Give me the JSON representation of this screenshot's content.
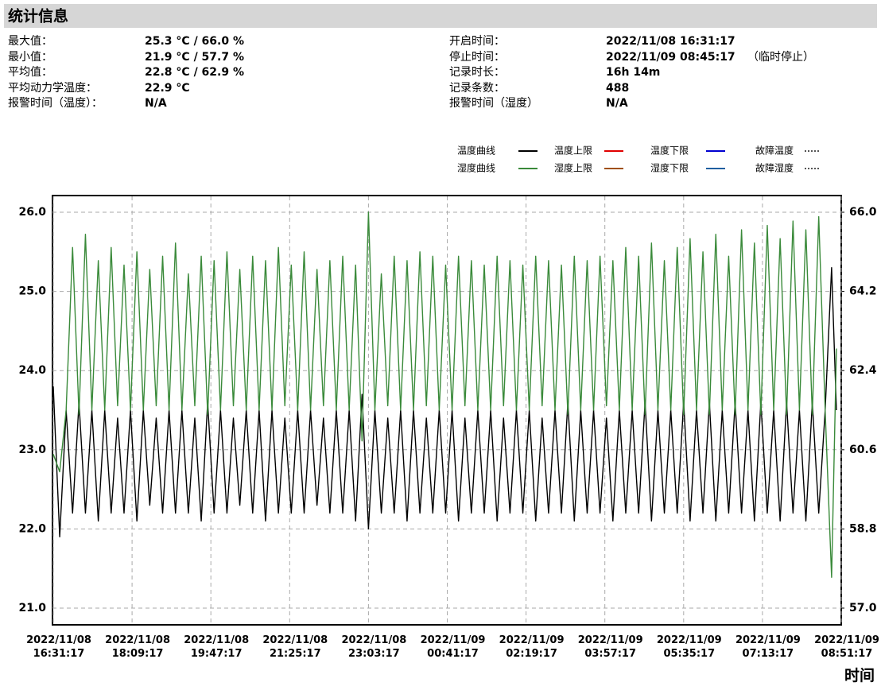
{
  "stats": {
    "title": "统计信息",
    "left": [
      {
        "label": "最大值：",
        "value": "25.3 °C / 66.0 %"
      },
      {
        "label": "最小值：",
        "value": "21.9 °C / 57.7 %"
      },
      {
        "label": "平均值：",
        "value": "22.8 °C / 62.9 %"
      },
      {
        "label": "平均动力学温度：",
        "value": "22.9 °C"
      },
      {
        "label": "报警时间（温度）：",
        "value": "N/A"
      }
    ],
    "right": [
      {
        "label": "开启时间：",
        "value": "2022/11/08 16:31:17"
      },
      {
        "label": "停止时间：",
        "value": "2022/11/09 08:45:17",
        "note": "（临时停止）"
      },
      {
        "label": "记录时长：",
        "value": "16h 14m"
      },
      {
        "label": "记录条数：",
        "value": "488"
      },
      {
        "label": "报警时间（湿度）",
        "value": "N/A"
      }
    ]
  },
  "chart_data": {
    "type": "line",
    "x_label": "时间",
    "grid": true,
    "xlim": [
      "2022/11/08 16:31:17",
      "2022/11/09 08:51:17"
    ],
    "xticks": [
      "2022/11/08 16:31:17",
      "2022/11/08 18:09:17",
      "2022/11/08 19:47:17",
      "2022/11/08 21:25:17",
      "2022/11/08 23:03:17",
      "2022/11/09 00:41:17",
      "2022/11/09 02:19:17",
      "2022/11/09 03:57:17",
      "2022/11/09 05:35:17",
      "2022/11/09 07:13:17",
      "2022/11/09 08:51:17"
    ],
    "ylim": [
      21,
      26
    ],
    "yticks": [
      {
        "value": 21,
        "label": "21.0"
      },
      {
        "value": 22,
        "label": "22.0"
      },
      {
        "value": 23,
        "label": "23.0"
      },
      {
        "value": 24,
        "label": "24.0"
      },
      {
        "value": 25,
        "label": "25.0"
      },
      {
        "value": 26,
        "label": "26.0"
      }
    ],
    "y2lim": [
      57,
      66
    ],
    "y2ticks": [
      {
        "value": 57,
        "label": "57.0"
      },
      58.8,
      60.6,
      62.4,
      64.2,
      {
        "value": 66,
        "label": "66.0"
      }
    ],
    "x": [
      "2022/11/08 16:31:17",
      "2022/11/08 16:39:17",
      "2022/11/08 16:47:17",
      "2022/11/08 16:55:17",
      "2022/11/08 17:03:17",
      "2022/11/08 17:11:17",
      "2022/11/08 17:19:17",
      "2022/11/08 17:27:17",
      "2022/11/08 17:35:17",
      "2022/11/08 17:43:17",
      "2022/11/08 17:51:17",
      "2022/11/08 17:59:17",
      "2022/11/08 18:07:17",
      "2022/11/08 18:15:17",
      "2022/11/08 18:23:17",
      "2022/11/08 18:31:17",
      "2022/11/08 18:39:17",
      "2022/11/08 18:47:17",
      "2022/11/08 18:55:17",
      "2022/11/08 19:03:17",
      "2022/11/08 19:11:17",
      "2022/11/08 19:19:17",
      "2022/11/08 19:27:17",
      "2022/11/08 19:35:17",
      "2022/11/08 19:43:17",
      "2022/11/08 19:51:17",
      "2022/11/08 19:59:17",
      "2022/11/08 20:07:17",
      "2022/11/08 20:15:17",
      "2022/11/08 20:23:17",
      "2022/11/08 20:31:17",
      "2022/11/08 20:39:17",
      "2022/11/08 20:47:17",
      "2022/11/08 20:55:17",
      "2022/11/08 21:03:17",
      "2022/11/08 21:11:17",
      "2022/11/08 21:19:17",
      "2022/11/08 21:27:17",
      "2022/11/08 21:35:17",
      "2022/11/08 21:43:17",
      "2022/11/08 21:51:17",
      "2022/11/08 21:59:17",
      "2022/11/08 22:07:17",
      "2022/11/08 22:15:17",
      "2022/11/08 22:23:17",
      "2022/11/08 22:31:17",
      "2022/11/08 22:39:17",
      "2022/11/08 22:47:17",
      "2022/11/08 22:55:17",
      "2022/11/08 23:03:17",
      "2022/11/08 23:11:17",
      "2022/11/08 23:19:17",
      "2022/11/08 23:27:17",
      "2022/11/08 23:35:17",
      "2022/11/08 23:43:17",
      "2022/11/08 23:51:17",
      "2022/11/08 23:59:17",
      "2022/11/09 00:07:17",
      "2022/11/09 00:15:17",
      "2022/11/09 00:23:17",
      "2022/11/09 00:31:17",
      "2022/11/09 00:39:17",
      "2022/11/09 00:47:17",
      "2022/11/09 00:55:17",
      "2022/11/09 01:03:17",
      "2022/11/09 01:11:17",
      "2022/11/09 01:19:17",
      "2022/11/09 01:27:17",
      "2022/11/09 01:35:17",
      "2022/11/09 01:43:17",
      "2022/11/09 01:51:17",
      "2022/11/09 01:59:17",
      "2022/11/09 02:07:17",
      "2022/11/09 02:15:17",
      "2022/11/09 02:23:17",
      "2022/11/09 02:31:17",
      "2022/11/09 02:39:17",
      "2022/11/09 02:47:17",
      "2022/11/09 02:55:17",
      "2022/11/09 03:03:17",
      "2022/11/09 03:11:17",
      "2022/11/09 03:19:17",
      "2022/11/09 03:27:17",
      "2022/11/09 03:35:17",
      "2022/11/09 03:43:17",
      "2022/11/09 03:51:17",
      "2022/11/09 03:59:17",
      "2022/11/09 04:07:17",
      "2022/11/09 04:15:17",
      "2022/11/09 04:23:17",
      "2022/11/09 04:31:17",
      "2022/11/09 04:39:17",
      "2022/11/09 04:47:17",
      "2022/11/09 04:55:17",
      "2022/11/09 05:03:17",
      "2022/11/09 05:11:17",
      "2022/11/09 05:19:17",
      "2022/11/09 05:27:17",
      "2022/11/09 05:35:17",
      "2022/11/09 05:43:17",
      "2022/11/09 05:51:17",
      "2022/11/09 05:59:17",
      "2022/11/09 06:07:17",
      "2022/11/09 06:15:17",
      "2022/11/09 06:23:17",
      "2022/11/09 06:31:17",
      "2022/11/09 06:39:17",
      "2022/11/09 06:47:17",
      "2022/11/09 06:55:17",
      "2022/11/09 07:03:17",
      "2022/11/09 07:11:17",
      "2022/11/09 07:19:17",
      "2022/11/09 07:27:17",
      "2022/11/09 07:35:17",
      "2022/11/09 07:43:17",
      "2022/11/09 07:51:17",
      "2022/11/09 07:59:17",
      "2022/11/09 08:07:17",
      "2022/11/09 08:15:17",
      "2022/11/09 08:23:17",
      "2022/11/09 08:31:17",
      "2022/11/09 08:39:17",
      "2022/11/09 08:45:17"
    ],
    "series": [
      {
        "name": "温度曲线",
        "color": "#000000",
        "axis": "y",
        "limits": [
          {
            "name": "温度上限",
            "color": "#e00000"
          },
          {
            "name": "温度下限",
            "color": "#0000d0"
          },
          {
            "name": "故障温度",
            "color": "#555555",
            "dash": "dot"
          }
        ],
        "values": [
          23.8,
          21.9,
          23.5,
          22.2,
          23.6,
          22.2,
          23.5,
          22.1,
          23.5,
          22.2,
          23.4,
          22.2,
          23.5,
          22.1,
          23.5,
          22.3,
          23.4,
          22.2,
          23.5,
          22.2,
          23.5,
          22.2,
          23.4,
          22.1,
          23.6,
          22.2,
          23.5,
          22.2,
          23.4,
          22.3,
          23.5,
          22.2,
          23.5,
          22.1,
          23.5,
          22.2,
          23.4,
          22.2,
          23.5,
          22.2,
          23.5,
          22.3,
          23.4,
          22.2,
          23.5,
          22.2,
          23.5,
          22.1,
          23.7,
          22.0,
          23.5,
          22.2,
          23.4,
          22.2,
          23.5,
          22.1,
          23.5,
          22.2,
          23.4,
          22.2,
          23.5,
          22.2,
          23.5,
          22.1,
          23.4,
          22.2,
          23.5,
          22.2,
          23.5,
          22.1,
          23.4,
          22.2,
          23.5,
          22.2,
          23.5,
          22.1,
          23.4,
          22.2,
          23.5,
          22.2,
          23.6,
          22.1,
          23.5,
          22.2,
          23.5,
          22.2,
          23.4,
          22.1,
          23.5,
          22.2,
          23.5,
          22.2,
          23.6,
          22.1,
          23.5,
          22.2,
          23.5,
          22.2,
          23.6,
          22.1,
          23.5,
          22.2,
          23.6,
          22.1,
          23.5,
          22.2,
          23.6,
          22.2,
          23.5,
          22.1,
          23.6,
          22.2,
          23.5,
          22.1,
          23.6,
          22.2,
          23.5,
          22.1,
          23.6,
          22.2,
          23.5,
          25.3,
          23.5
        ]
      },
      {
        "name": "湿度曲线",
        "color": "#3a8a3a",
        "axis": "y2",
        "limits": [
          {
            "name": "湿度上限",
            "color": "#a05010"
          },
          {
            "name": "湿度下限",
            "color": "#1f5fa0"
          },
          {
            "name": "故障湿度",
            "color": "#555555",
            "dash": "dot"
          }
        ],
        "values": [
          60.5,
          60.1,
          61.5,
          65.2,
          61.4,
          65.5,
          61.5,
          64.9,
          61.5,
          65.2,
          61.6,
          64.8,
          61.5,
          65.1,
          61.5,
          64.7,
          61.6,
          65.0,
          61.5,
          65.3,
          61.5,
          64.6,
          61.6,
          65.0,
          61.4,
          64.9,
          61.5,
          65.1,
          61.6,
          64.7,
          61.5,
          65.0,
          61.5,
          64.9,
          61.5,
          65.2,
          61.6,
          64.8,
          61.5,
          65.1,
          61.5,
          64.7,
          61.6,
          64.9,
          61.5,
          65.0,
          61.5,
          64.8,
          60.8,
          66.0,
          61.5,
          64.6,
          61.6,
          65.0,
          61.5,
          64.9,
          61.5,
          65.1,
          61.6,
          65.0,
          61.5,
          64.8,
          61.5,
          65.0,
          61.6,
          64.9,
          61.5,
          64.8,
          61.5,
          65.0,
          61.6,
          64.9,
          61.5,
          64.8,
          61.5,
          65.0,
          61.6,
          64.9,
          61.5,
          64.8,
          61.4,
          65.0,
          61.5,
          64.9,
          61.5,
          65.0,
          61.6,
          64.9,
          61.5,
          65.2,
          61.5,
          65.0,
          61.4,
          65.3,
          61.5,
          64.9,
          61.5,
          65.2,
          61.4,
          65.4,
          61.5,
          65.1,
          61.4,
          65.5,
          61.5,
          65.0,
          61.4,
          65.6,
          61.5,
          65.3,
          61.4,
          65.7,
          61.5,
          65.4,
          61.4,
          65.8,
          61.5,
          65.6,
          61.4,
          65.9,
          61.5,
          57.7,
          62.9
        ]
      }
    ]
  }
}
